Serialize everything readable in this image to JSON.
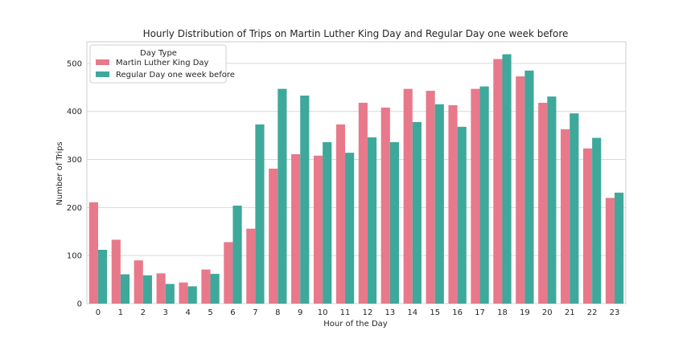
{
  "chart_data": {
    "type": "bar",
    "title": "Hourly Distribution of Trips on Martin Luther King Day and Regular Day one week before",
    "xlabel": "Hour of the Day",
    "ylabel": "Number of Trips",
    "ylim": [
      0,
      545
    ],
    "yticks": [
      0,
      100,
      200,
      300,
      400,
      500
    ],
    "grid": "horizontal",
    "legend": {
      "title": "Day Type",
      "position": "top-left"
    },
    "categories": [
      "0",
      "1",
      "2",
      "3",
      "4",
      "5",
      "6",
      "7",
      "8",
      "9",
      "10",
      "11",
      "12",
      "13",
      "14",
      "15",
      "16",
      "17",
      "18",
      "19",
      "20",
      "21",
      "22",
      "23"
    ],
    "series": [
      {
        "name": "Martin Luther King Day",
        "color": "#e8798b",
        "values": [
          211,
          133,
          90,
          63,
          44,
          71,
          128,
          156,
          281,
          311,
          308,
          373,
          418,
          408,
          447,
          443,
          413,
          447,
          509,
          473,
          418,
          363,
          323,
          220
        ]
      },
      {
        "name": "Regular Day one week before",
        "color": "#3ea89b",
        "values": [
          112,
          61,
          59,
          41,
          36,
          62,
          204,
          373,
          447,
          433,
          336,
          314,
          346,
          336,
          378,
          415,
          368,
          452,
          519,
          485,
          431,
          396,
          345,
          231
        ]
      }
    ]
  }
}
